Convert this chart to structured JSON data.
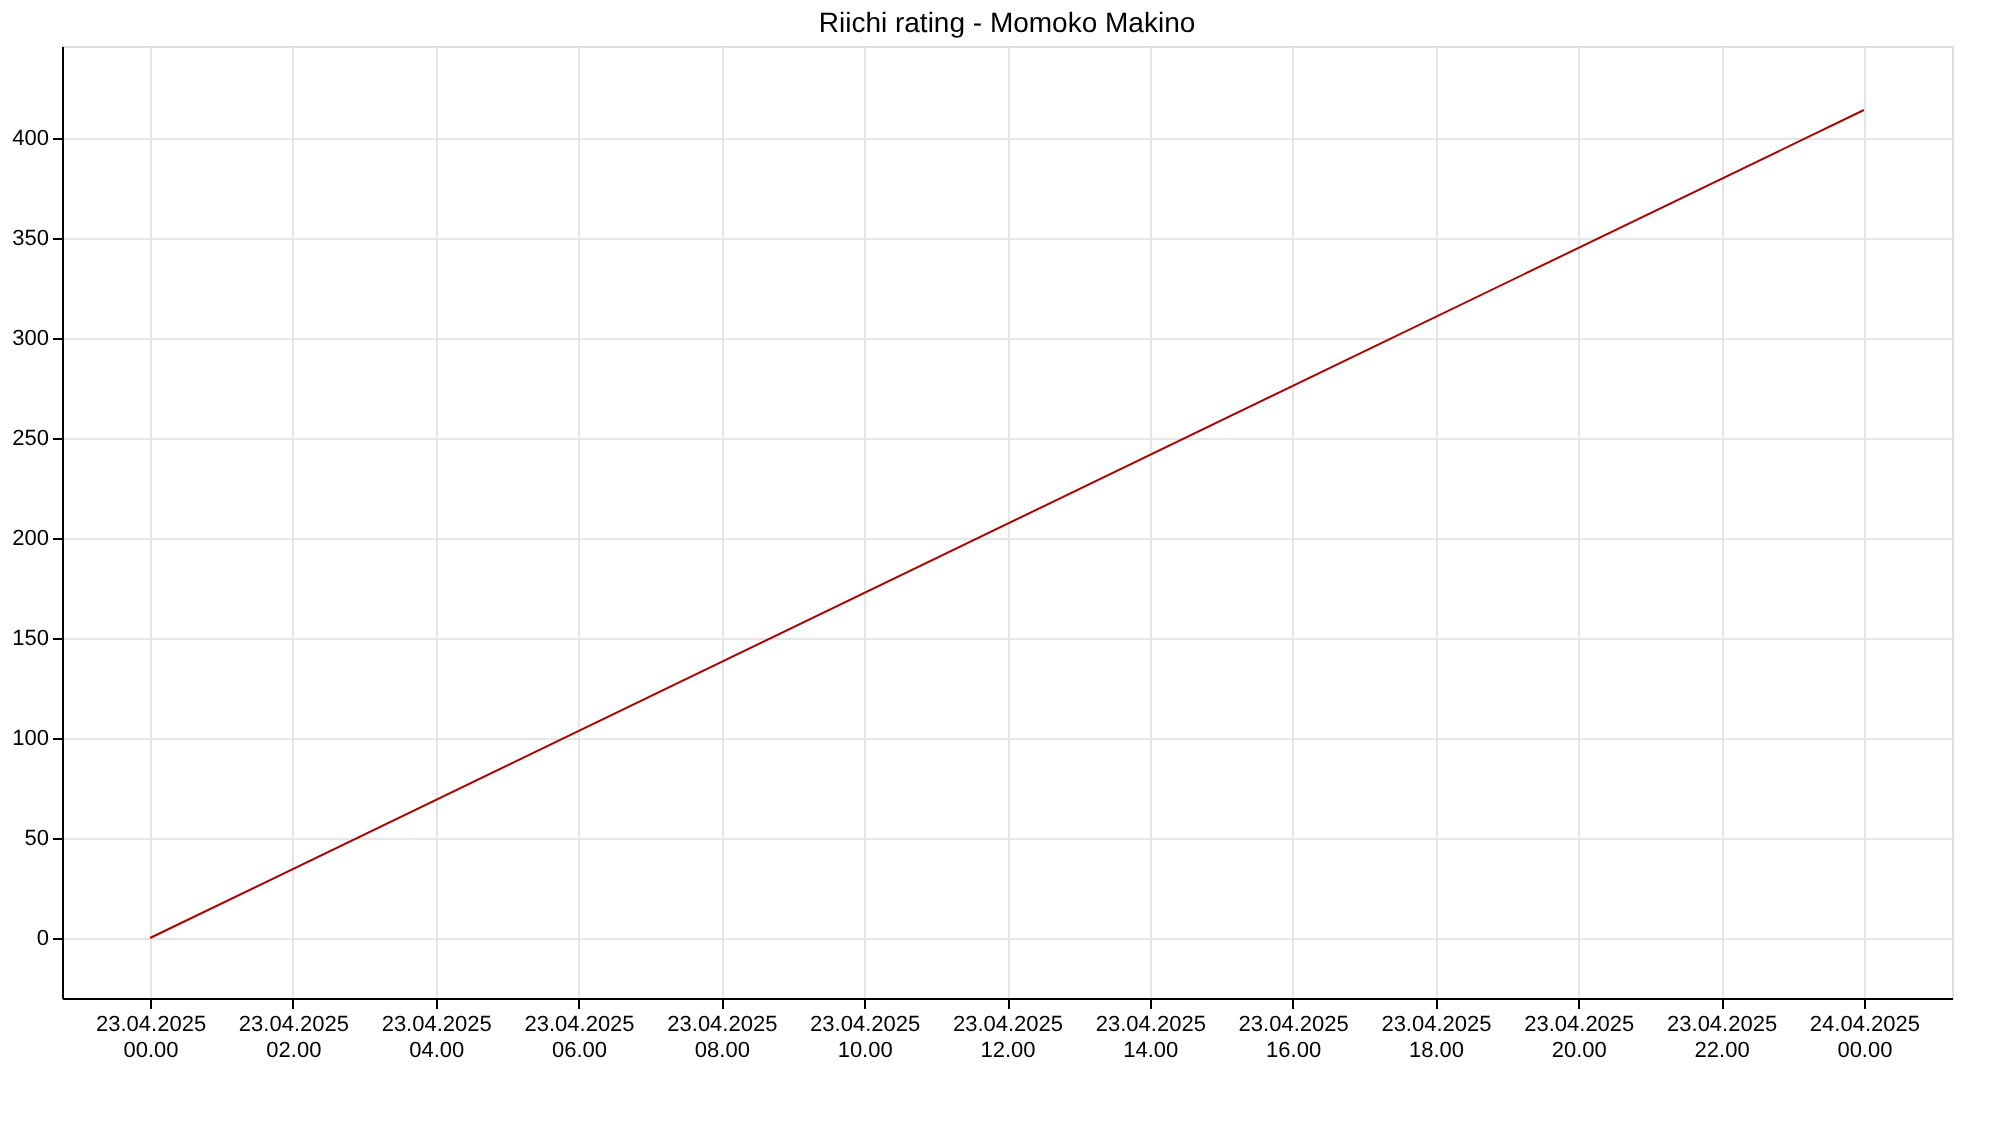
{
  "chart_data": {
    "type": "line",
    "title": "Riichi rating - Momoko Makino",
    "x": [
      "2025-04-23T00:00",
      "2025-04-24T00:00"
    ],
    "series": [
      {
        "color": "#aa0000",
        "values": [
          0,
          414
        ]
      }
    ],
    "xlim": [
      "2025-04-22T22:46",
      "2025-04-24T01:14"
    ],
    "xticks": [
      {
        "value": "2025-04-23T00:00",
        "label": "23.04.2025 00.00"
      },
      {
        "value": "2025-04-23T02:00",
        "label": "23.04.2025 02.00"
      },
      {
        "value": "2025-04-23T04:00",
        "label": "23.04.2025 04.00"
      },
      {
        "value": "2025-04-23T06:00",
        "label": "23.04.2025 06.00"
      },
      {
        "value": "2025-04-23T08:00",
        "label": "23.04.2025 08.00"
      },
      {
        "value": "2025-04-23T10:00",
        "label": "23.04.2025 10.00"
      },
      {
        "value": "2025-04-23T12:00",
        "label": "23.04.2025 12.00"
      },
      {
        "value": "2025-04-23T14:00",
        "label": "23.04.2025 14.00"
      },
      {
        "value": "2025-04-23T16:00",
        "label": "23.04.2025 16.00"
      },
      {
        "value": "2025-04-23T18:00",
        "label": "23.04.2025 18.00"
      },
      {
        "value": "2025-04-23T20:00",
        "label": "23.04.2025 20.00"
      },
      {
        "value": "2025-04-23T22:00",
        "label": "23.04.2025 22.00"
      },
      {
        "value": "2025-04-24T00:00",
        "label": "24.04.2025 00.00"
      }
    ],
    "ylim": [
      -30,
      446
    ],
    "yticks": [
      0,
      50,
      100,
      150,
      200,
      250,
      300,
      350,
      400
    ],
    "grid": true,
    "marker": "none",
    "line_style": "solid"
  }
}
